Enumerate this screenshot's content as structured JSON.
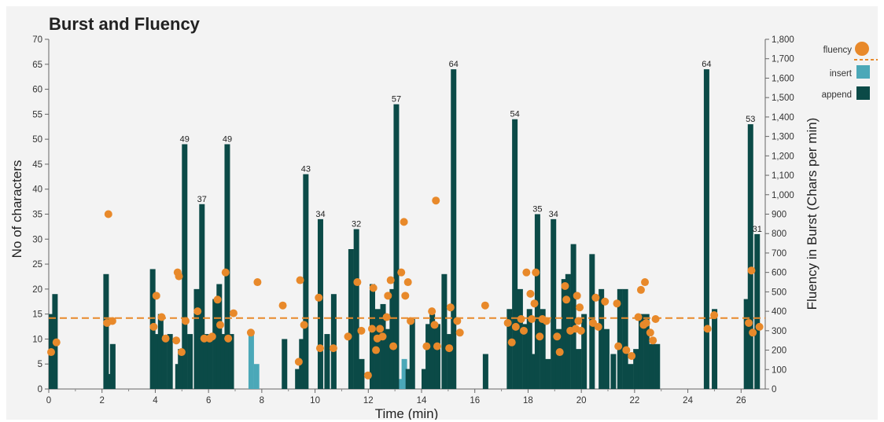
{
  "chart_data": {
    "type": "bar",
    "title": "Burst and Fluency",
    "xlabel": "Time (min)",
    "ylabel": "No of characters",
    "y2label": "Fluency in Burst (Chars per min)",
    "xlim": [
      0,
      26.7
    ],
    "ylim": [
      0,
      70
    ],
    "y2lim": [
      0,
      1800
    ],
    "x_ticks": [
      0,
      2,
      4,
      6,
      8,
      10,
      12,
      14,
      16,
      18,
      20,
      22,
      24,
      26
    ],
    "y_ticks": [
      0,
      5,
      10,
      15,
      20,
      25,
      30,
      35,
      40,
      45,
      50,
      55,
      60,
      65,
      70
    ],
    "y2_ticks": [
      0,
      100,
      200,
      300,
      400,
      500,
      600,
      700,
      800,
      900,
      1000,
      1100,
      1200,
      1300,
      1400,
      1500,
      1600,
      1700,
      1800
    ],
    "y2_tick_labels": [
      "0",
      "100",
      "200",
      "300",
      "400",
      "500",
      "600",
      "700",
      "800",
      "900",
      "1,000",
      "1,100",
      "1,200",
      "1,300",
      "1,400",
      "1,500",
      "1,600",
      "1,700",
      "1,800"
    ],
    "colors": {
      "append": "#0b4a47",
      "insert": "#4ba8b8",
      "fluency": "#e8892a",
      "mean_line": "#e8892a"
    },
    "legend": [
      {
        "name": "fluency",
        "marker": "circle"
      },
      {
        "name": "insert",
        "marker": "square"
      },
      {
        "name": "append",
        "marker": "square"
      }
    ],
    "mean_fluency": 14.2,
    "series": [
      {
        "name": "append",
        "points": [
          [
            0.0,
            15
          ],
          [
            0.13,
            19
          ],
          [
            2.05,
            23
          ],
          [
            2.12,
            3
          ],
          [
            2.3,
            9
          ],
          [
            3.8,
            24
          ],
          [
            3.95,
            11
          ],
          [
            4.1,
            15
          ],
          [
            4.25,
            10
          ],
          [
            4.45,
            11
          ],
          [
            4.75,
            5
          ],
          [
            4.85,
            8
          ],
          [
            5.0,
            49
          ],
          [
            5.2,
            11
          ],
          [
            5.45,
            20
          ],
          [
            5.65,
            37
          ],
          [
            5.8,
            11
          ],
          [
            5.95,
            10
          ],
          [
            6.15,
            18
          ],
          [
            6.3,
            21
          ],
          [
            6.45,
            11
          ],
          [
            6.6,
            49
          ],
          [
            6.75,
            11
          ],
          [
            8.75,
            10
          ],
          [
            9.25,
            4
          ],
          [
            9.4,
            10
          ],
          [
            9.55,
            43
          ],
          [
            10.1,
            34
          ],
          [
            10.35,
            11
          ],
          [
            10.6,
            19
          ],
          [
            11.25,
            28
          ],
          [
            11.45,
            32
          ],
          [
            11.65,
            6
          ],
          [
            12.05,
            21
          ],
          [
            12.25,
            16
          ],
          [
            12.45,
            17
          ],
          [
            12.6,
            12
          ],
          [
            12.8,
            20
          ],
          [
            12.95,
            57
          ],
          [
            13.4,
            4
          ],
          [
            13.55,
            14
          ],
          [
            14.0,
            4
          ],
          [
            14.15,
            13
          ],
          [
            14.3,
            15
          ],
          [
            14.5,
            13
          ],
          [
            14.75,
            23
          ],
          [
            14.95,
            11
          ],
          [
            15.1,
            64
          ],
          [
            16.3,
            7
          ],
          [
            17.2,
            16
          ],
          [
            17.4,
            54
          ],
          [
            17.6,
            20
          ],
          [
            17.8,
            13
          ],
          [
            17.95,
            16
          ],
          [
            18.05,
            7
          ],
          [
            18.25,
            35
          ],
          [
            18.45,
            16
          ],
          [
            18.65,
            6
          ],
          [
            18.85,
            34
          ],
          [
            19.05,
            12
          ],
          [
            19.25,
            22
          ],
          [
            19.4,
            23
          ],
          [
            19.6,
            29
          ],
          [
            19.8,
            8
          ],
          [
            20.0,
            15
          ],
          [
            20.3,
            27
          ],
          [
            20.65,
            20
          ],
          [
            20.85,
            12
          ],
          [
            21.1,
            7
          ],
          [
            21.35,
            20
          ],
          [
            21.55,
            20
          ],
          [
            21.75,
            5
          ],
          [
            21.95,
            8
          ],
          [
            22.15,
            15
          ],
          [
            22.35,
            15
          ],
          [
            22.55,
            9
          ],
          [
            22.75,
            9
          ],
          [
            24.6,
            64
          ],
          [
            24.9,
            16
          ],
          [
            26.1,
            18
          ],
          [
            26.25,
            53
          ],
          [
            26.5,
            31
          ]
        ],
        "value_labels": [
          [
            5.0,
            49
          ],
          [
            5.65,
            37
          ],
          [
            6.6,
            49
          ],
          [
            9.55,
            43
          ],
          [
            10.1,
            34
          ],
          [
            11.45,
            32
          ],
          [
            12.95,
            57
          ],
          [
            15.1,
            64
          ],
          [
            17.4,
            54
          ],
          [
            18.25,
            35
          ],
          [
            18.85,
            34
          ],
          [
            24.6,
            64
          ],
          [
            26.25,
            53
          ],
          [
            26.5,
            31
          ]
        ]
      },
      {
        "name": "insert",
        "points": [
          [
            7.5,
            11
          ],
          [
            7.7,
            5
          ],
          [
            13.15,
            2
          ],
          [
            13.25,
            6
          ]
        ]
      },
      {
        "name": "fluency",
        "points": [
          [
            0.0,
            190
          ],
          [
            0.2,
            240
          ],
          [
            2.1,
            340
          ],
          [
            2.15,
            900
          ],
          [
            2.3,
            350
          ],
          [
            3.85,
            320
          ],
          [
            3.95,
            480
          ],
          [
            4.15,
            370
          ],
          [
            4.3,
            260
          ],
          [
            4.7,
            250
          ],
          [
            4.75,
            600
          ],
          [
            4.8,
            580
          ],
          [
            4.9,
            190
          ],
          [
            5.05,
            350
          ],
          [
            5.5,
            400
          ],
          [
            5.75,
            260
          ],
          [
            5.95,
            260
          ],
          [
            6.05,
            270
          ],
          [
            6.25,
            460
          ],
          [
            6.35,
            330
          ],
          [
            6.55,
            600
          ],
          [
            6.65,
            260
          ],
          [
            6.85,
            390
          ],
          [
            7.5,
            290
          ],
          [
            7.75,
            550
          ],
          [
            8.7,
            430
          ],
          [
            9.3,
            140
          ],
          [
            9.35,
            560
          ],
          [
            9.5,
            330
          ],
          [
            10.05,
            470
          ],
          [
            10.1,
            210
          ],
          [
            10.6,
            210
          ],
          [
            11.15,
            270
          ],
          [
            11.5,
            550
          ],
          [
            11.65,
            300
          ],
          [
            11.9,
            70
          ],
          [
            12.05,
            310
          ],
          [
            12.1,
            520
          ],
          [
            12.2,
            200
          ],
          [
            12.25,
            260
          ],
          [
            12.35,
            310
          ],
          [
            12.45,
            270
          ],
          [
            12.6,
            370
          ],
          [
            12.65,
            480
          ],
          [
            12.75,
            560
          ],
          [
            12.85,
            220
          ],
          [
            13.15,
            600
          ],
          [
            13.25,
            860
          ],
          [
            13.3,
            480
          ],
          [
            13.4,
            550
          ],
          [
            13.5,
            350
          ],
          [
            14.1,
            220
          ],
          [
            14.3,
            400
          ],
          [
            14.4,
            330
          ],
          [
            14.45,
            970
          ],
          [
            14.5,
            220
          ],
          [
            14.95,
            210
          ],
          [
            15.0,
            420
          ],
          [
            15.25,
            350
          ],
          [
            15.35,
            290
          ],
          [
            16.3,
            430
          ],
          [
            17.15,
            340
          ],
          [
            17.3,
            240
          ],
          [
            17.45,
            320
          ],
          [
            17.65,
            360
          ],
          [
            17.75,
            300
          ],
          [
            17.85,
            600
          ],
          [
            18.0,
            490
          ],
          [
            18.05,
            360
          ],
          [
            18.15,
            440
          ],
          [
            18.2,
            600
          ],
          [
            18.35,
            270
          ],
          [
            18.45,
            360
          ],
          [
            18.6,
            350
          ],
          [
            19.0,
            270
          ],
          [
            19.1,
            190
          ],
          [
            19.3,
            530
          ],
          [
            19.35,
            460
          ],
          [
            19.5,
            300
          ],
          [
            19.7,
            310
          ],
          [
            19.75,
            480
          ],
          [
            19.8,
            350
          ],
          [
            19.85,
            420
          ],
          [
            19.9,
            300
          ],
          [
            20.35,
            340
          ],
          [
            20.45,
            470
          ],
          [
            20.55,
            320
          ],
          [
            20.8,
            450
          ],
          [
            21.25,
            440
          ],
          [
            21.3,
            220
          ],
          [
            21.6,
            200
          ],
          [
            21.8,
            170
          ],
          [
            22.05,
            370
          ],
          [
            22.15,
            510
          ],
          [
            22.25,
            330
          ],
          [
            22.3,
            550
          ],
          [
            22.35,
            340
          ],
          [
            22.5,
            290
          ],
          [
            22.6,
            250
          ],
          [
            22.7,
            360
          ],
          [
            24.65,
            310
          ],
          [
            24.9,
            380
          ],
          [
            26.2,
            340
          ],
          [
            26.3,
            610
          ],
          [
            26.35,
            290
          ],
          [
            26.6,
            320
          ]
        ]
      }
    ]
  }
}
